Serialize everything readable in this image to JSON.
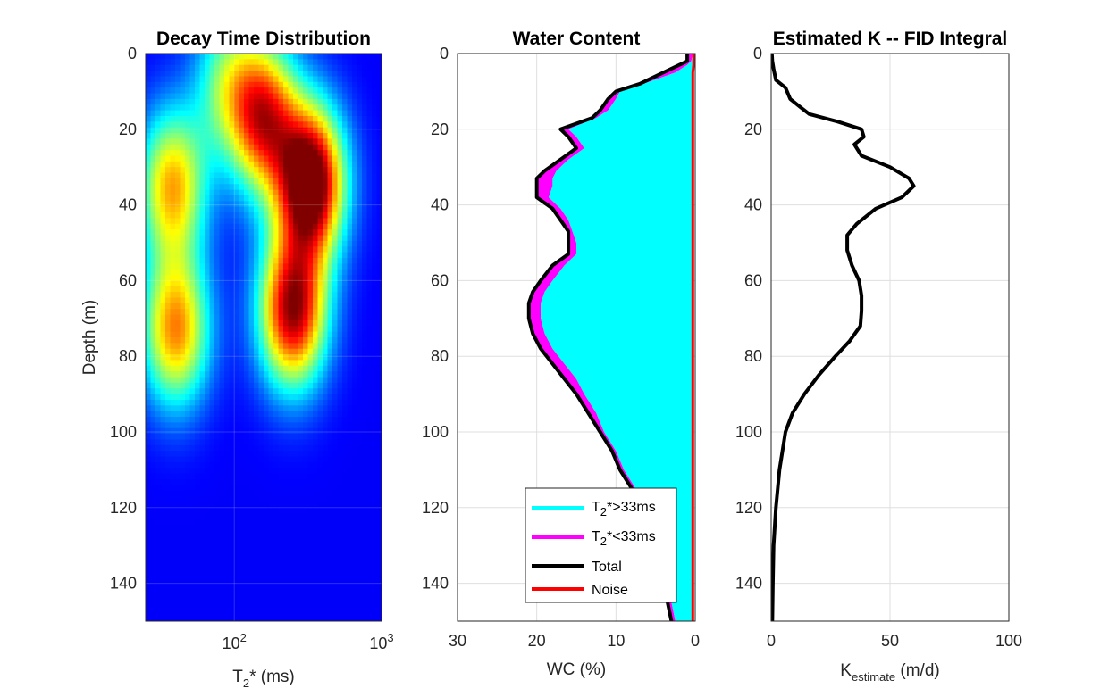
{
  "figure": {
    "colors": {
      "background": "#ffffff",
      "axis": "#262626",
      "grid": "#dfdfdf",
      "wc_long": "#00ffff",
      "wc_short": "#ff00ff",
      "total": "#000000",
      "noise": "#ff0000",
      "colormap": "jet"
    },
    "shared_ylabel": "Depth (m)"
  },
  "chart_data": [
    {
      "type": "heatmap",
      "title": "Decay Time Distribution",
      "xlabel_base": "T",
      "xlabel_sub": "2",
      "xlabel_rest": "* (ms)",
      "ylabel": "Depth (m)",
      "xscale": "log",
      "xlim": [
        25,
        1000
      ],
      "ylim": [
        0,
        150
      ],
      "y_reversed": true,
      "colormap": "jet",
      "x_tick_labels": [
        {
          "base": "10",
          "exp": "2"
        },
        {
          "base": "10",
          "exp": "3"
        }
      ],
      "x_ticks": [
        100,
        1000
      ],
      "y_ticks": [
        0,
        20,
        40,
        60,
        80,
        100,
        120,
        140
      ],
      "y_tick_labels": [
        "0",
        "20",
        "40",
        "60",
        "80",
        "100",
        "120",
        "140"
      ],
      "grid": true,
      "features": [
        {
          "t2_ms": 330,
          "depth_m": 34,
          "intensity": 1.0
        },
        {
          "t2_ms": 250,
          "depth_m": 68,
          "intensity": 0.85
        },
        {
          "t2_ms": 40,
          "depth_m": 73,
          "intensity": 0.62
        },
        {
          "t2_ms": 38,
          "depth_m": 35,
          "intensity": 0.58
        },
        {
          "t2_ms": 160,
          "depth_m": 17,
          "intensity": 0.7
        },
        {
          "t2_ms": 90,
          "depth_m": 8,
          "intensity": 0.35
        }
      ]
    },
    {
      "type": "area",
      "title": "Water Content",
      "xlabel": "WC (%)",
      "xlim": [
        30,
        0
      ],
      "ylim": [
        0,
        150
      ],
      "x_reversed": true,
      "y_reversed": true,
      "x_ticks": [
        30,
        20,
        10,
        0
      ],
      "x_tick_labels": [
        "30",
        "20",
        "10",
        "0"
      ],
      "y_ticks": [
        0,
        20,
        40,
        60,
        80,
        100,
        120,
        140
      ],
      "y_tick_labels": [
        "0",
        "20",
        "40",
        "60",
        "80",
        "100",
        "120",
        "140"
      ],
      "grid": true,
      "legend_position": "bottom-right",
      "legend": [
        {
          "label_base": "T",
          "label_sub": "2",
          "label_rest": "*>33ms",
          "color": "#00ffff"
        },
        {
          "label_base": "T",
          "label_sub": "2",
          "label_rest": "*<33ms",
          "color": "#ff00ff"
        },
        {
          "label_base": "Total",
          "label_sub": "",
          "label_rest": "",
          "color": "#000000"
        },
        {
          "label_base": "Noise",
          "label_sub": "",
          "label_rest": "",
          "color": "#ff0000"
        }
      ],
      "depth": [
        0,
        2,
        3,
        5,
        8,
        10,
        12,
        15,
        17,
        20,
        22,
        25,
        28,
        31,
        33,
        35,
        38,
        41,
        44,
        47,
        50,
        53,
        56,
        60,
        63,
        66,
        70,
        74,
        78,
        82,
        86,
        90,
        95,
        100,
        105,
        110,
        115,
        120,
        125,
        130,
        135,
        140,
        145,
        150
      ],
      "series": [
        {
          "name": "Total",
          "values": [
            1,
            1,
            2,
            4,
            7,
            10,
            11,
            12,
            13,
            17,
            16,
            15,
            17,
            19,
            20,
            20,
            20,
            18,
            17,
            16,
            16,
            16,
            18,
            19.5,
            20.5,
            21,
            21,
            20.5,
            19.5,
            18,
            16.5,
            15,
            13.5,
            12,
            10.5,
            9.5,
            8,
            7.5,
            6.5,
            5.5,
            5,
            4.5,
            3.5,
            3
          ]
        },
        {
          "name": "T2*<33ms",
          "values": [
            0.3,
            0.5,
            1,
            2.5,
            6.5,
            9.5,
            10,
            11,
            12.5,
            16,
            15,
            14,
            16,
            17.5,
            18,
            18,
            18.5,
            17,
            16,
            15.5,
            15,
            15,
            16.5,
            18,
            19,
            19.5,
            19.5,
            19,
            18,
            16.5,
            15,
            14,
            12.5,
            11.5,
            10,
            9,
            7.5,
            7,
            6,
            5,
            4.5,
            4,
            3,
            2.5
          ]
        },
        {
          "name": "Noise",
          "values": [
            0.2,
            0.2,
            0.2,
            0.3,
            0.3,
            0.3,
            0.3,
            0.3,
            0.3,
            0.3,
            0.3,
            0.3,
            0.3,
            0.3,
            0.3,
            0.3,
            0.3,
            0.3,
            0.3,
            0.3,
            0.3,
            0.3,
            0.3,
            0.3,
            0.3,
            0.3,
            0.3,
            0.3,
            0.3,
            0.3,
            0.3,
            0.3,
            0.3,
            0.3,
            0.3,
            0.3,
            0.3,
            0.3,
            0.3,
            0.3,
            0.3,
            0.3,
            0.3,
            0.3
          ]
        }
      ]
    },
    {
      "type": "line",
      "title": "Estimated K -- FID Integral",
      "xlabel_base": "K",
      "xlabel_sub": "estimate",
      "xlabel_rest": " (m/d)",
      "xlim": [
        0,
        100
      ],
      "ylim": [
        0,
        150
      ],
      "y_reversed": true,
      "x_ticks": [
        0,
        50,
        100
      ],
      "x_tick_labels": [
        "0",
        "50",
        "100"
      ],
      "y_ticks": [
        0,
        20,
        40,
        60,
        80,
        100,
        120,
        140
      ],
      "y_tick_labels": [
        "0",
        "20",
        "40",
        "60",
        "80",
        "100",
        "120",
        "140"
      ],
      "grid": true,
      "series": [
        {
          "name": "K",
          "depth": [
            0,
            2,
            4,
            7,
            9,
            12,
            14,
            16,
            18,
            20,
            22,
            24,
            27,
            30,
            33,
            35,
            38,
            41,
            45,
            48,
            52,
            56,
            60,
            64,
            68,
            72,
            76,
            80,
            85,
            90,
            95,
            100,
            110,
            120,
            130,
            140,
            150
          ],
          "values": [
            0.3,
            0.5,
            1,
            2,
            6,
            8,
            12,
            16,
            28,
            38,
            39,
            35,
            38,
            50,
            58,
            60,
            55,
            44,
            36,
            32,
            32,
            34,
            37,
            38,
            38,
            37.5,
            33,
            27,
            20,
            14,
            9,
            6,
            3.5,
            2,
            1,
            0.7,
            0.5
          ]
        }
      ]
    }
  ]
}
